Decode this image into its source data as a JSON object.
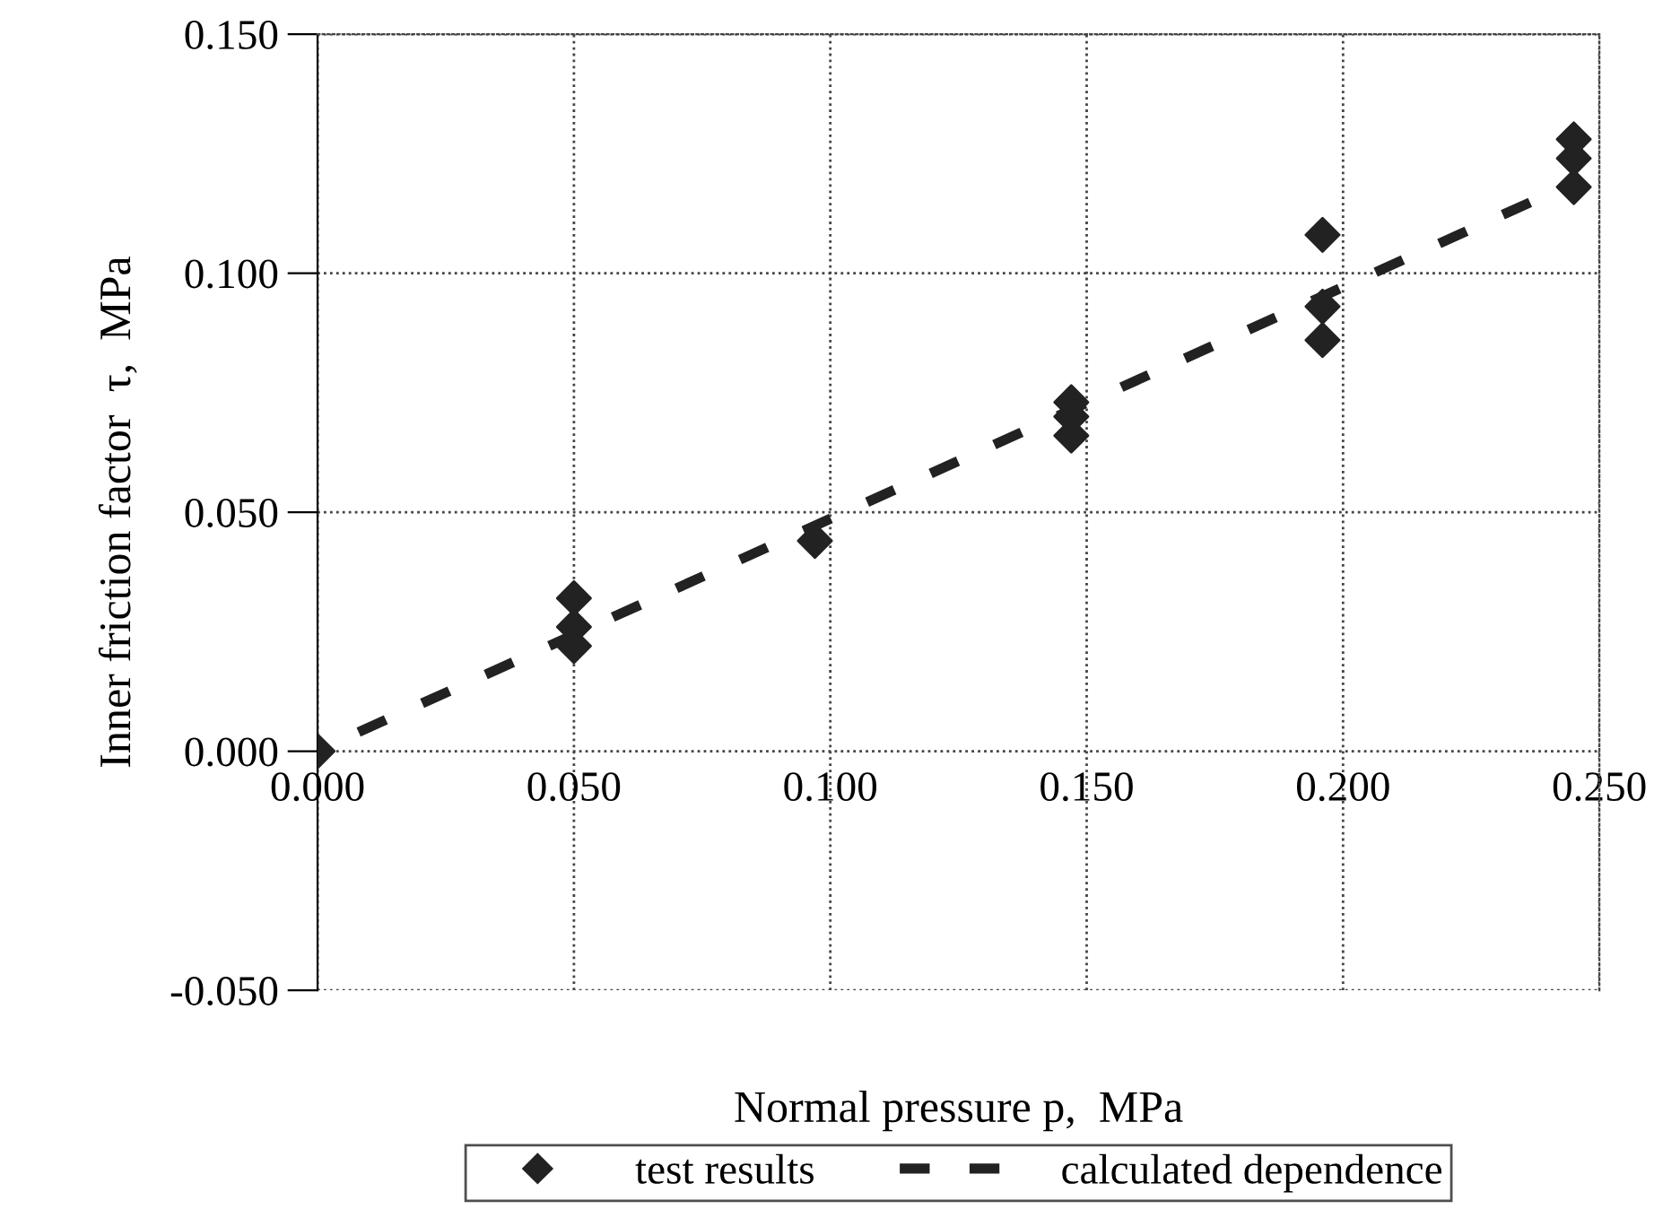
{
  "chart_data": {
    "type": "scatter",
    "xlabel": "Normal pressure p,  MPa",
    "ylabel": "Inner friction factor  τ,  MPa",
    "series": [
      {
        "name": "test results",
        "color": "#222222",
        "marker": "diamond",
        "x": [
          0.0,
          0.05,
          0.05,
          0.05,
          0.097,
          0.147,
          0.147,
          0.147,
          0.196,
          0.196,
          0.196,
          0.245,
          0.245,
          0.245
        ],
        "values": [
          0.0,
          0.032,
          0.026,
          0.022,
          0.044,
          0.073,
          0.07,
          0.066,
          0.108,
          0.093,
          0.086,
          0.128,
          0.124,
          0.118
        ]
      },
      {
        "name": "calculated dependence",
        "type": "line",
        "color": "#222222",
        "line_style": "dashed",
        "x": [
          0.008,
          0.24
        ],
        "values": [
          0.004,
          0.1165
        ]
      }
    ],
    "xlim": [
      0,
      0.25
    ],
    "xticks": [
      {
        "value": 0,
        "label": "0.000"
      },
      {
        "value": 0.05,
        "label": "0.050"
      },
      {
        "value": 0.1,
        "label": "0.100"
      },
      {
        "value": 0.15,
        "label": "0.150"
      },
      {
        "value": 0.2,
        "label": "0.200"
      },
      {
        "value": 0.25,
        "label": "0.250"
      }
    ],
    "ylim": [
      -0.05,
      0.15
    ],
    "yticks": [
      {
        "value": -0.05,
        "label": "-0.050"
      },
      {
        "value": 0,
        "label": "0.000"
      },
      {
        "value": 0.05,
        "label": "0.050"
      },
      {
        "value": 0.1,
        "label": "0.100"
      },
      {
        "value": 0.15,
        "label": "0.150"
      }
    ],
    "grid": true,
    "legend": "bottom"
  }
}
